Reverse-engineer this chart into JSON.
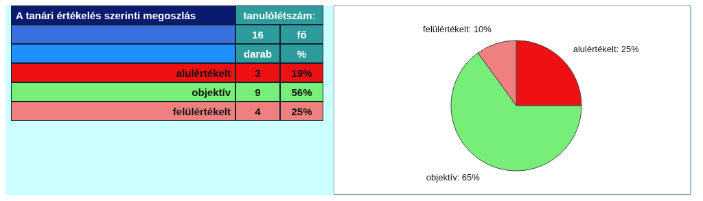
{
  "chart_data": [
    {
      "type": "other",
      "title": "A tanári értékelés szerinti megoszlás",
      "categories": [
        "alulértékelt",
        "objektív",
        "felülértékelt"
      ],
      "colors": [
        "#ee1111",
        "#77ee77",
        "#f08080"
      ],
      "series": [
        {
          "name": "darab",
          "colors": [
            "#ee1111",
            "#77ee77",
            "#f08080"
          ],
          "values": [
            3,
            9,
            4
          ]
        },
        {
          "name": "%",
          "colors": [
            "#ee1111",
            "#77ee77",
            "#f08080"
          ],
          "values": [
            19,
            56,
            25
          ]
        }
      ],
      "annotations": [
        "tanulólétszám:",
        "16",
        "fő"
      ],
      "data_labels": true
    },
    {
      "type": "pie",
      "categories": [
        "alulértékelt",
        "objektív",
        "felülértékelt"
      ],
      "values": [
        25,
        65,
        10
      ],
      "value_labels": [
        "25%",
        "65%",
        "10%"
      ],
      "colors": [
        "#ee1111",
        "#77ee77",
        "#f08080"
      ]
    }
  ]
}
